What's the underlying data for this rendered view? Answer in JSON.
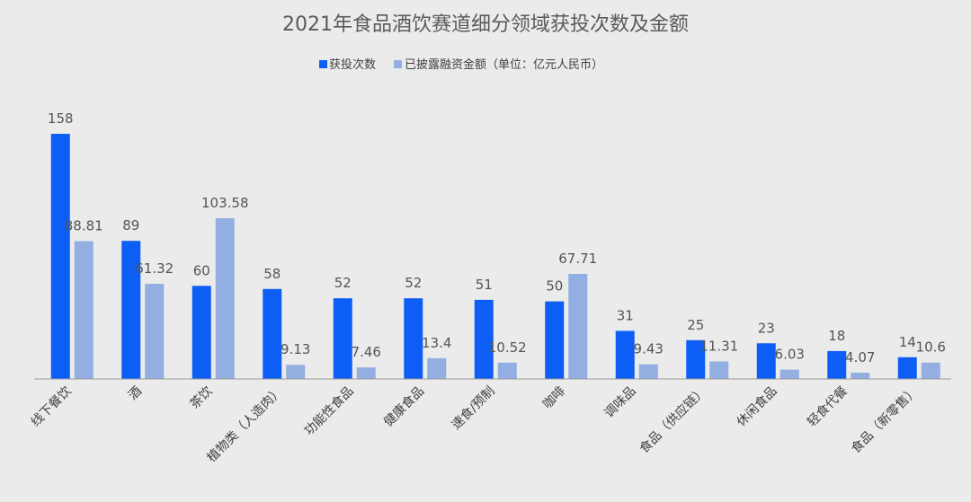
{
  "chart_data": {
    "type": "bar",
    "title": "2021年食品酒饮赛道细分领域获投次数及金额",
    "categories": [
      "线下餐饮",
      "酒",
      "茶饮",
      "植物类（人造肉）",
      "功能性食品",
      "健康食品",
      "速食/预制",
      "咖啡",
      "调味品",
      "食品（供应链）",
      "休闲食品",
      "轻食代餐",
      "食品（新零售）"
    ],
    "series": [
      {
        "name": "获投次数",
        "color": "#0d5ef5",
        "values": [
          158,
          89,
          60,
          58,
          52,
          52,
          51,
          50,
          31,
          25,
          23,
          18,
          14
        ],
        "labels": [
          "158",
          "89",
          "60",
          "58",
          "52",
          "52",
          "51",
          "50",
          "31",
          "25",
          "23",
          "18",
          "14"
        ]
      },
      {
        "name": "已披露融资金额（单位：亿元人民币）",
        "color": "#93aee0",
        "values": [
          88.81,
          61.32,
          103.58,
          9.13,
          7.46,
          13.4,
          10.52,
          67.71,
          9.43,
          11.31,
          6.03,
          4.07,
          10.6
        ],
        "labels": [
          "88.81",
          "61.32",
          "103.58",
          "9.13",
          "7.46",
          "13.4",
          "10.52",
          "67.71",
          "9.43",
          "11.31",
          "6.03",
          "4.07",
          "10.6"
        ]
      }
    ],
    "ylim": [
      0,
      158
    ],
    "grid": false,
    "legend_position": "top-center"
  }
}
